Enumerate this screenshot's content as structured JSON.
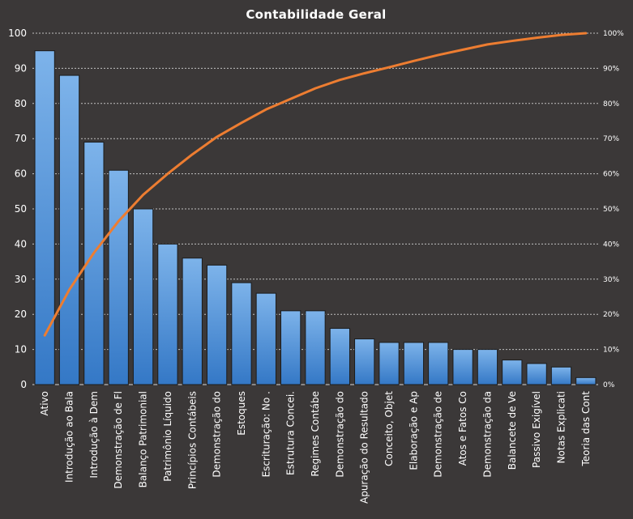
{
  "chart_data": {
    "type": "bar",
    "title": "Contabilidade Geral",
    "xlabel": "",
    "ylabel": "",
    "ylim": [
      0,
      100
    ],
    "y_ticks": [
      "0",
      "10",
      "20",
      "30",
      "40",
      "50",
      "60",
      "70",
      "80",
      "90",
      "100"
    ],
    "y2lim": [
      0,
      100
    ],
    "y2_ticks": [
      "0%",
      "10%",
      "20%",
      "30%",
      "40%",
      "50%",
      "60%",
      "70%",
      "80%",
      "90%",
      "100%"
    ],
    "grid": true,
    "legend": "none",
    "categories": [
      "Ativo",
      "Introdução ao Bala",
      "Introdução à Dem",
      "Demonstração de Fl",
      "Balanço Patrimonial",
      "Patrimônio Líquido",
      "Princípios Contábeis",
      "Demonstração do",
      "Estoques",
      "Escrituração: No .",
      "Estrutura Concei.",
      "Regimes Contábe",
      "Demonstração do",
      "Apuração do Resultado",
      "Conceito, Objet",
      "Elaboração e Ap",
      "Demonstração de",
      "Atos e Fatos Co",
      "Demonstração da",
      "Balancete de Ve",
      "Passivo Exigível",
      "Notas Explicati",
      "Teoria das Cont"
    ],
    "series": [
      {
        "type": "bar",
        "axis": "left",
        "values": [
          95,
          88,
          69,
          61,
          50,
          40,
          36,
          34,
          29,
          26,
          21,
          21,
          16,
          13,
          12,
          12,
          12,
          10,
          10,
          7,
          6,
          5,
          2
        ]
      },
      {
        "type": "line",
        "axis": "right",
        "values": [
          14,
          27,
          37.5,
          46.5,
          54,
          60,
          65.5,
          70.5,
          74.5,
          78.3,
          81.3,
          84.3,
          86.7,
          88.6,
          90.3,
          92.1,
          93.8,
          95.3,
          96.8,
          97.8,
          98.7,
          99.5,
          100
        ]
      }
    ],
    "colors": {
      "background": "#3b3838",
      "bar_top": "#7db3ea",
      "bar_bottom": "#3478c6",
      "line": "#ed7d31",
      "text": "#ffffff",
      "grid": "#d9d9d9"
    }
  }
}
